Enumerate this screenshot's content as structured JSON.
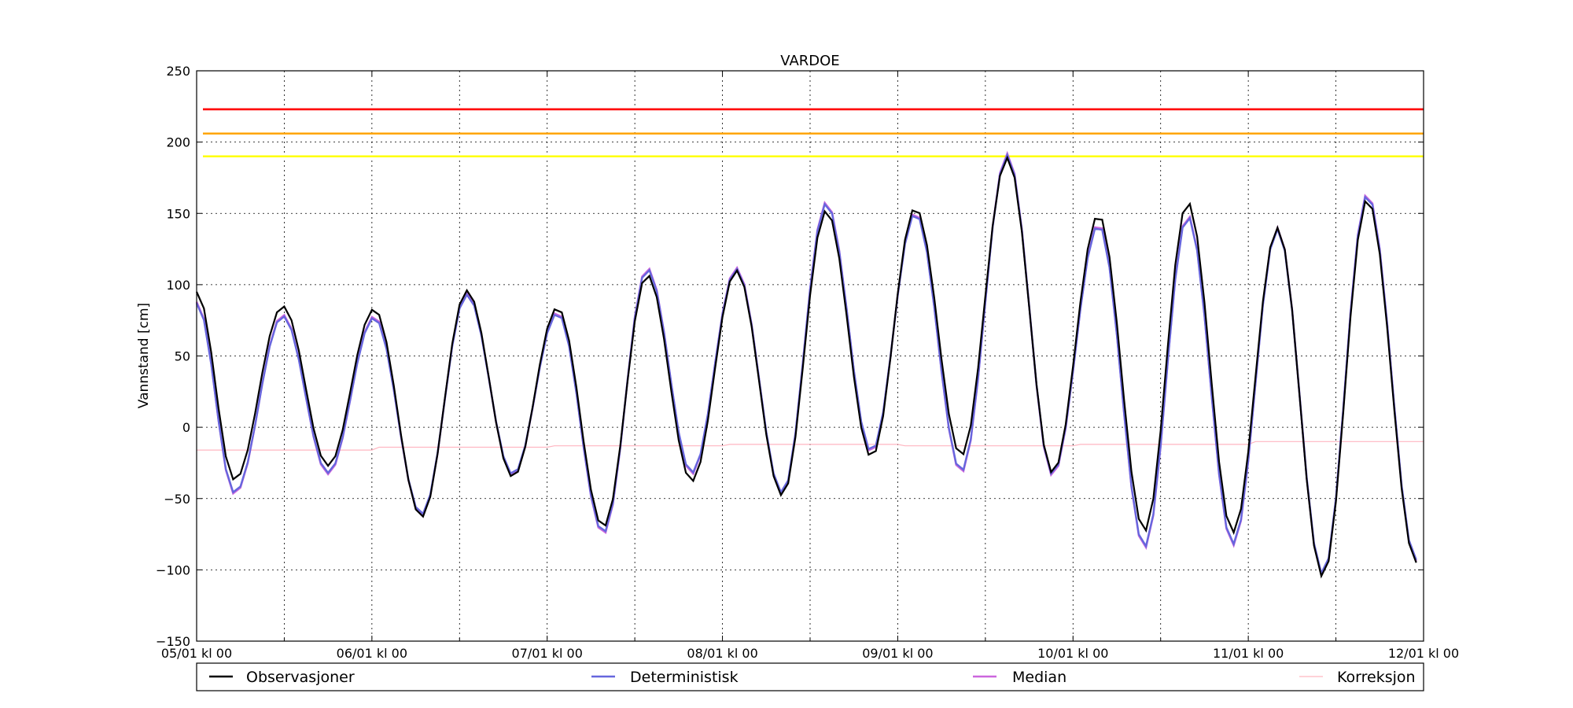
{
  "chart_data": {
    "type": "line",
    "title": "VARDOE",
    "ylabel": "Vannstand [cm]",
    "xlabel": "",
    "ylim": [
      -150,
      250
    ],
    "xlim_hours": [
      0,
      168
    ],
    "grid": true,
    "legend_position": "bottom",
    "x_ticks": [
      {
        "label": "05/01 kl 00",
        "hour": 0
      },
      {
        "label": "06/01 kl 00",
        "hour": 24
      },
      {
        "label": "07/01 kl 00",
        "hour": 48
      },
      {
        "label": "08/01 kl 00",
        "hour": 72
      },
      {
        "label": "09/01 kl 00",
        "hour": 96
      },
      {
        "label": "10/01 kl 00",
        "hour": 120
      },
      {
        "label": "11/01 kl 00",
        "hour": 144
      },
      {
        "label": "12/01 kl 00",
        "hour": 168
      }
    ],
    "x_minor_hours": [
      12,
      36,
      60,
      84,
      108,
      132,
      156
    ],
    "y_ticks": [
      -150,
      -100,
      -50,
      0,
      50,
      100,
      150,
      200,
      250
    ],
    "thresholds": [
      {
        "value": 223,
        "color": "#ff0000"
      },
      {
        "value": 206,
        "color": "#ffa500"
      },
      {
        "value": 190,
        "color": "#ffff00"
      }
    ],
    "extrema": [
      {
        "hour": 0,
        "obs": 95,
        "det": 87
      },
      {
        "hour": 5.2,
        "obs": -37,
        "det": -46
      },
      {
        "hour": 11.8,
        "obs": 85,
        "det": 78
      },
      {
        "hour": 18,
        "obs": -27,
        "det": -32
      },
      {
        "hour": 24.3,
        "obs": 83,
        "det": 77
      },
      {
        "hour": 30.8,
        "obs": -63,
        "det": -61
      },
      {
        "hour": 37,
        "obs": 96,
        "det": 93
      },
      {
        "hour": 43.3,
        "obs": -35,
        "det": -33
      },
      {
        "hour": 49.4,
        "obs": 84,
        "det": 80
      },
      {
        "hour": 55.7,
        "obs": -70,
        "det": -74
      },
      {
        "hour": 61.7,
        "obs": 107,
        "det": 111
      },
      {
        "hour": 67.8,
        "obs": -38,
        "det": -32
      },
      {
        "hour": 73.9,
        "obs": 110,
        "det": 111
      },
      {
        "hour": 80.2,
        "obs": -48,
        "det": -46
      },
      {
        "hour": 86.2,
        "obs": 152,
        "det": 157
      },
      {
        "hour": 92.4,
        "obs": -21,
        "det": -17
      },
      {
        "hour": 98.4,
        "obs": 154,
        "det": 150
      },
      {
        "hour": 104.7,
        "obs": -20,
        "det": -31
      },
      {
        "hour": 111,
        "obs": 189,
        "det": 191
      },
      {
        "hour": 117.2,
        "obs": -32,
        "det": -33
      },
      {
        "hour": 123.5,
        "obs": 149,
        "det": 142
      },
      {
        "hour": 129.8,
        "obs": -73,
        "det": -84
      },
      {
        "hour": 135.7,
        "obs": 158,
        "det": 148
      },
      {
        "hour": 141.9,
        "obs": -74,
        "det": -82
      },
      {
        "hour": 148,
        "obs": 140,
        "det": 139
      },
      {
        "hour": 154.2,
        "obs": -105,
        "det": -103
      },
      {
        "hour": 160.3,
        "obs": 160,
        "det": 163
      },
      {
        "hour": 167,
        "obs": -95,
        "det": -93
      }
    ],
    "correction": [
      {
        "hour": 0,
        "value": -16
      },
      {
        "hour": 24,
        "value": -16
      },
      {
        "hour": 25,
        "value": -14
      },
      {
        "hour": 48,
        "value": -14
      },
      {
        "hour": 49,
        "value": -13
      },
      {
        "hour": 72,
        "value": -13
      },
      {
        "hour": 73,
        "value": -12
      },
      {
        "hour": 96,
        "value": -12
      },
      {
        "hour": 97,
        "value": -13
      },
      {
        "hour": 120,
        "value": -13
      },
      {
        "hour": 121,
        "value": -12
      },
      {
        "hour": 144,
        "value": -12
      },
      {
        "hour": 145,
        "value": -10
      },
      {
        "hour": 168,
        "value": -10
      }
    ],
    "series": [
      {
        "name": "Observasjoner",
        "key": "obs",
        "color": "#000000"
      },
      {
        "name": "Deterministisk",
        "key": "det",
        "color": "#6666dd"
      },
      {
        "name": "Median",
        "key": "med",
        "color": "#cc66dd"
      },
      {
        "name": "Korreksjon",
        "key": "corr",
        "color": "#ffb6c1"
      }
    ]
  }
}
